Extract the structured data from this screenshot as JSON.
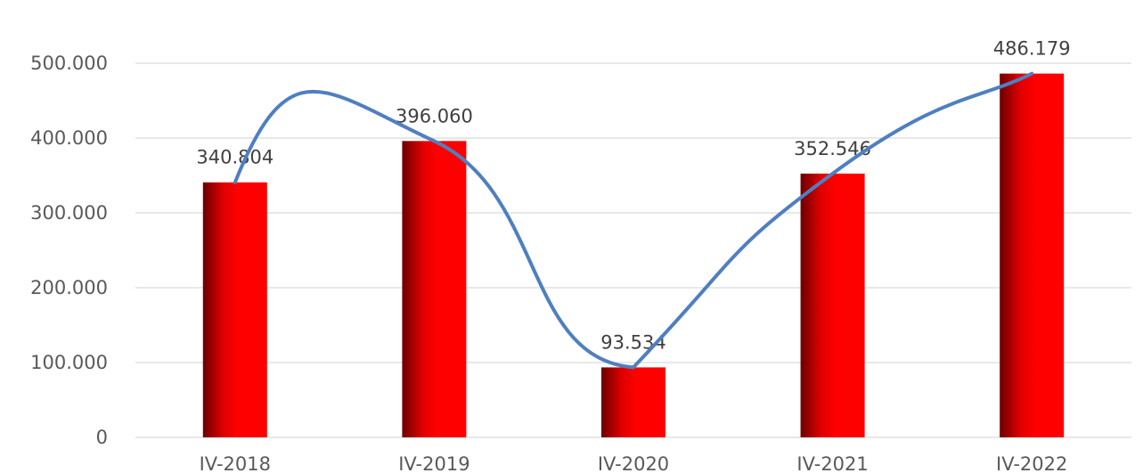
{
  "chart_data": {
    "type": "bar",
    "categories": [
      "IV-2018",
      "IV-2019",
      "IV-2020",
      "IV-2021",
      "IV-2022"
    ],
    "values": [
      340804,
      396060,
      93534,
      352546,
      486179
    ],
    "data_labels": [
      "340.804",
      "396.060",
      "93.534",
      "352.546",
      "486.179"
    ],
    "y_ticks": [
      {
        "value": 0,
        "label": "0"
      },
      {
        "value": 100000,
        "label": "100.000"
      },
      {
        "value": 200000,
        "label": "200.000"
      },
      {
        "value": 300000,
        "label": "300.000"
      },
      {
        "value": 400000,
        "label": "400.000"
      },
      {
        "value": 500000,
        "label": "500.000"
      }
    ],
    "ylim": [
      0,
      500000
    ],
    "grid": true,
    "overlay": "smoothed trend line through bar tops",
    "colors": {
      "bar": "#ff0000",
      "bar_dark": "#7a0000",
      "trend_line": "#4f7fc0",
      "grid": "#d9d9d9",
      "axis_text": "#595959"
    }
  }
}
